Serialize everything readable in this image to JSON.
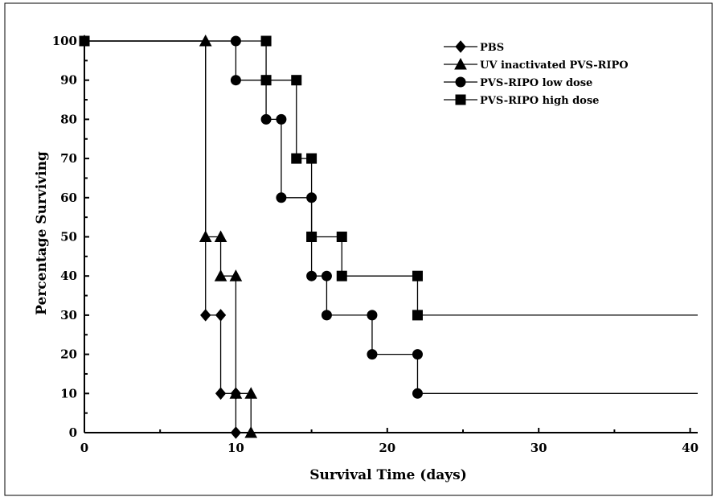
{
  "chart_data": {
    "type": "line",
    "step": true,
    "xlabel": "Survival Time (days)",
    "ylabel": "Percentage Surviving",
    "xlim": [
      0,
      40.5
    ],
    "ylim": [
      0,
      100
    ],
    "xticks": [
      0,
      10,
      20,
      30,
      40
    ],
    "yticks": [
      0,
      10,
      20,
      30,
      40,
      50,
      60,
      70,
      80,
      90,
      100
    ],
    "grid": false,
    "legend_position": "top-right",
    "series": [
      {
        "name": "PBS",
        "marker": "diamond",
        "steps": [
          [
            0,
            100
          ],
          [
            8,
            30
          ],
          [
            9,
            10
          ],
          [
            10,
            0
          ]
        ],
        "markers": [
          [
            0,
            100
          ],
          [
            8,
            30
          ],
          [
            9,
            30
          ],
          [
            9,
            10
          ],
          [
            10,
            10
          ],
          [
            10,
            0
          ]
        ],
        "end_x": 10
      },
      {
        "name": "UV inactivated PVS-RIPO",
        "marker": "triangle",
        "steps": [
          [
            0,
            100
          ],
          [
            8,
            50
          ],
          [
            9,
            40
          ],
          [
            10,
            10
          ],
          [
            11,
            0
          ]
        ],
        "markers": [
          [
            8,
            100
          ],
          [
            8,
            50
          ],
          [
            9,
            50
          ],
          [
            9,
            40
          ],
          [
            10,
            40
          ],
          [
            10,
            10
          ],
          [
            11,
            10
          ],
          [
            11,
            0
          ]
        ],
        "end_x": 11
      },
      {
        "name": "PVS-RIPO low dose",
        "marker": "circle",
        "steps": [
          [
            0,
            100
          ],
          [
            10,
            90
          ],
          [
            12,
            80
          ],
          [
            13,
            60
          ],
          [
            15,
            40
          ],
          [
            16,
            30
          ],
          [
            19,
            20
          ],
          [
            22,
            10
          ]
        ],
        "markers": [
          [
            10,
            100
          ],
          [
            10,
            90
          ],
          [
            12,
            90
          ],
          [
            12,
            80
          ],
          [
            13,
            80
          ],
          [
            13,
            60
          ],
          [
            15,
            60
          ],
          [
            15,
            40
          ],
          [
            16,
            40
          ],
          [
            16,
            30
          ],
          [
            19,
            30
          ],
          [
            19,
            20
          ],
          [
            22,
            20
          ],
          [
            22,
            10
          ]
        ],
        "end_x": 40.5
      },
      {
        "name": "PVS-RIPO high dose",
        "marker": "square",
        "steps": [
          [
            0,
            100
          ],
          [
            12,
            90
          ],
          [
            14,
            70
          ],
          [
            15,
            50
          ],
          [
            17,
            40
          ],
          [
            22,
            30
          ]
        ],
        "markers": [
          [
            0,
            100
          ],
          [
            12,
            100
          ],
          [
            12,
            90
          ],
          [
            14,
            90
          ],
          [
            14,
            70
          ],
          [
            15,
            70
          ],
          [
            15,
            50
          ],
          [
            17,
            50
          ],
          [
            17,
            40
          ],
          [
            22,
            40
          ],
          [
            22,
            30
          ]
        ],
        "end_x": 40.5
      }
    ]
  }
}
